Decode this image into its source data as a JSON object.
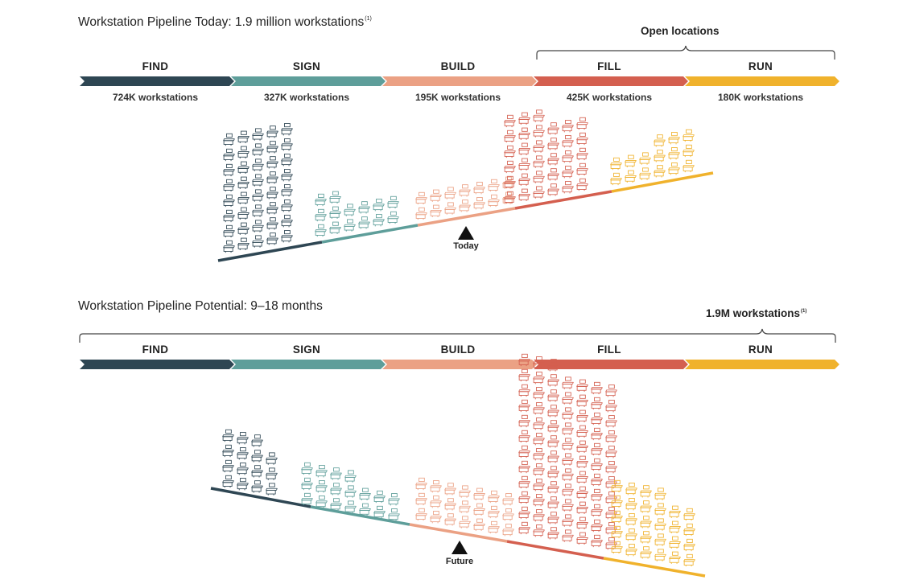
{
  "today": {
    "title": "Workstation Pipeline Today: 1.9 million workstations",
    "title_footnote": "(1)",
    "bracket_label": "Open locations",
    "stages": [
      {
        "name": "FIND",
        "count": "724K workstations",
        "color": "#2e4653"
      },
      {
        "name": "SIGN",
        "count": "327K workstations",
        "color": "#5e9e9a"
      },
      {
        "name": "BUILD",
        "count": "195K workstations",
        "color": "#eba184"
      },
      {
        "name": "FILL",
        "count": "425K workstations",
        "color": "#d45f4f"
      },
      {
        "name": "RUN",
        "count": "180K workstations",
        "color": "#f0b22c"
      }
    ],
    "marker": "Today"
  },
  "potential": {
    "title": "Workstation Pipeline Potential: 9–18 months",
    "bracket_label": "1.9M workstations",
    "bracket_footnote": "(1)",
    "stages": [
      {
        "name": "FIND",
        "color": "#2e4653"
      },
      {
        "name": "SIGN",
        "color": "#5e9e9a"
      },
      {
        "name": "BUILD",
        "color": "#eba184"
      },
      {
        "name": "FILL",
        "color": "#d45f4f"
      },
      {
        "name": "RUN",
        "color": "#f0b22c"
      }
    ],
    "marker": "Future"
  }
}
